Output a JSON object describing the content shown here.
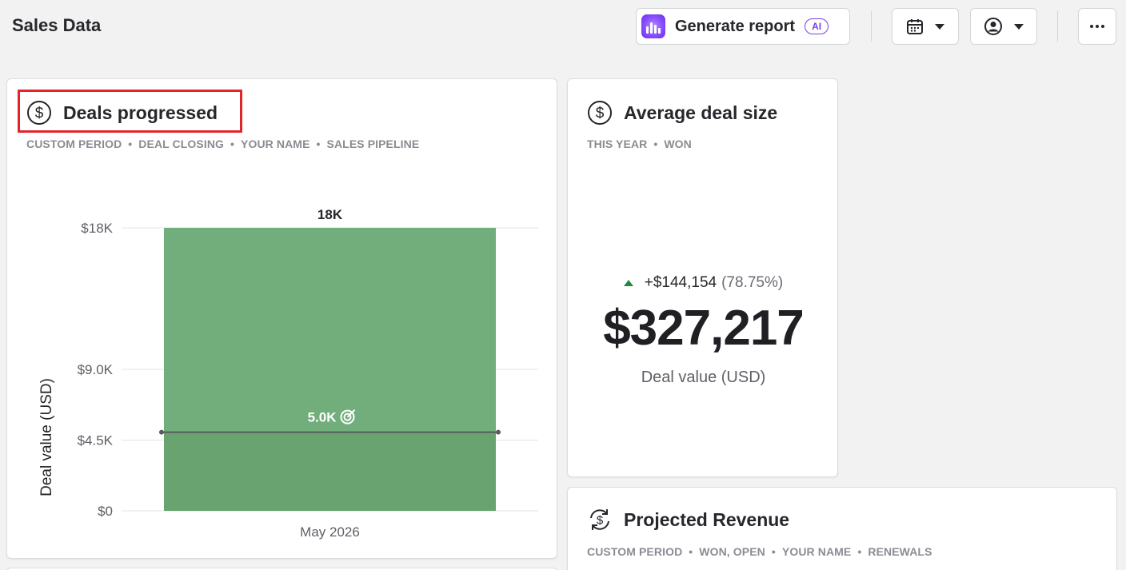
{
  "header": {
    "title": "Sales Data",
    "generate_report_label": "Generate report",
    "ai_badge": "AI"
  },
  "deals_card": {
    "title": "Deals progressed",
    "filters": [
      "CUSTOM PERIOD",
      "DEAL CLOSING",
      "YOUR NAME",
      "SALES PIPELINE"
    ],
    "separator": "•"
  },
  "avg_card": {
    "title": "Average deal size",
    "filters": [
      "THIS YEAR",
      "WON"
    ],
    "separator": "•",
    "change_value": "+$144,154",
    "change_percent": "(78.75%)",
    "value": "$327,217",
    "unit_label": "Deal value (USD)"
  },
  "proj_card": {
    "title": "Projected Revenue",
    "filters": [
      "CUSTOM PERIOD",
      "WON, OPEN",
      "YOUR NAME",
      "RENEWALS"
    ],
    "separator": "•"
  },
  "chart_data": {
    "type": "bar",
    "categories": [
      "May 2026"
    ],
    "values": [
      18000
    ],
    "data_labels": [
      "18K"
    ],
    "ylabel": "Deal value (USD)",
    "ylim": [
      0,
      18000
    ],
    "yticks": [
      0,
      4500,
      9000,
      18000
    ],
    "ytick_labels": [
      "$0",
      "$4.5K",
      "$9.0K",
      "$18K"
    ],
    "goal": {
      "value": 5000,
      "label": "5.0K"
    },
    "grid": true,
    "colors": {
      "bar": "#72ae7b",
      "bar_below_goal": "#69a470",
      "goal_line": "#5a5a5f"
    }
  },
  "colors": {
    "accent_ai": "#7b3fe4",
    "positive": "#1e8a3c",
    "highlight": "#e2252b"
  }
}
